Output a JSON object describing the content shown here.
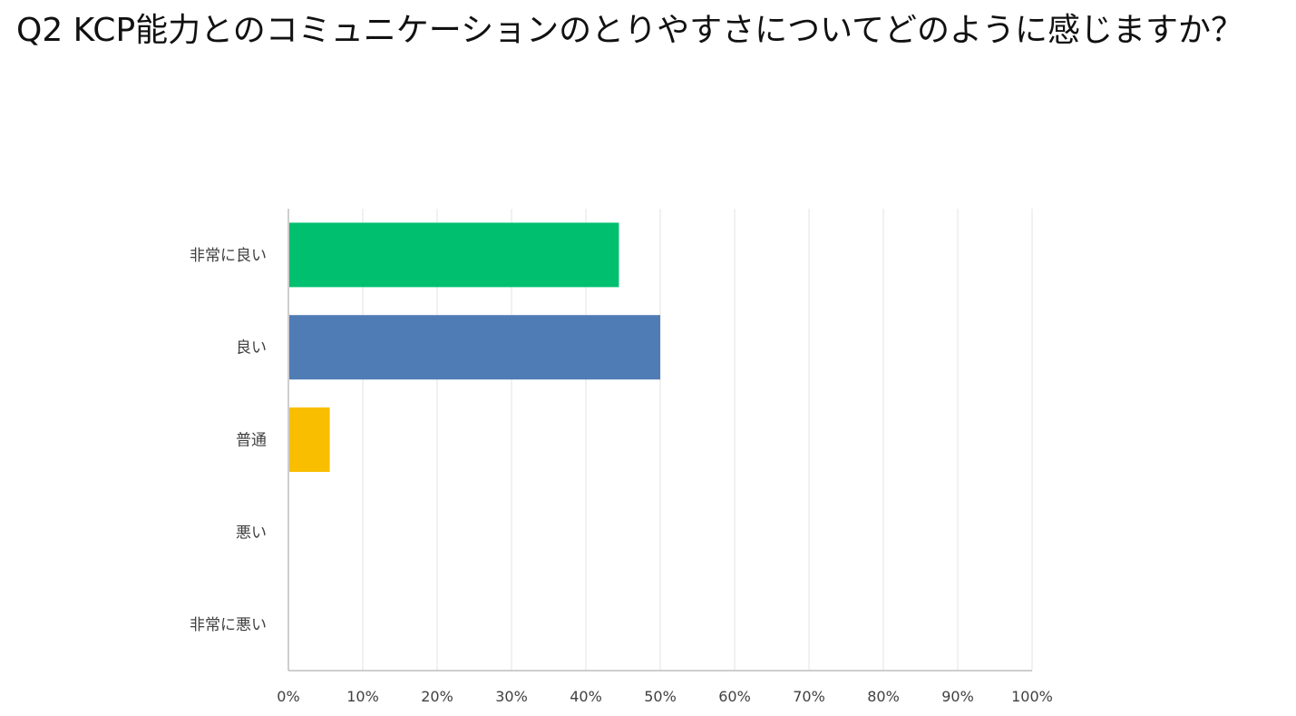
{
  "chart_data": {
    "type": "bar",
    "orientation": "horizontal",
    "title": "Q2 KCP能力とのコミュニケーションのとりやすさについてどのように感じますか？",
    "categories": [
      "非常に良い",
      "良い",
      "普通",
      "悪い",
      "非常に悪い"
    ],
    "values": [
      44.44,
      50.0,
      5.56,
      0,
      0
    ],
    "colors": [
      "#00bf6f",
      "#507cb6",
      "#f9be00",
      "#6bc8cd",
      "#ff8b4f"
    ],
    "xlim": [
      0,
      100
    ],
    "xticks": [
      "0%",
      "10%",
      "20%",
      "30%",
      "40%",
      "50%",
      "60%",
      "70%",
      "80%",
      "90%",
      "100%"
    ],
    "grid": true,
    "legend": "none"
  }
}
